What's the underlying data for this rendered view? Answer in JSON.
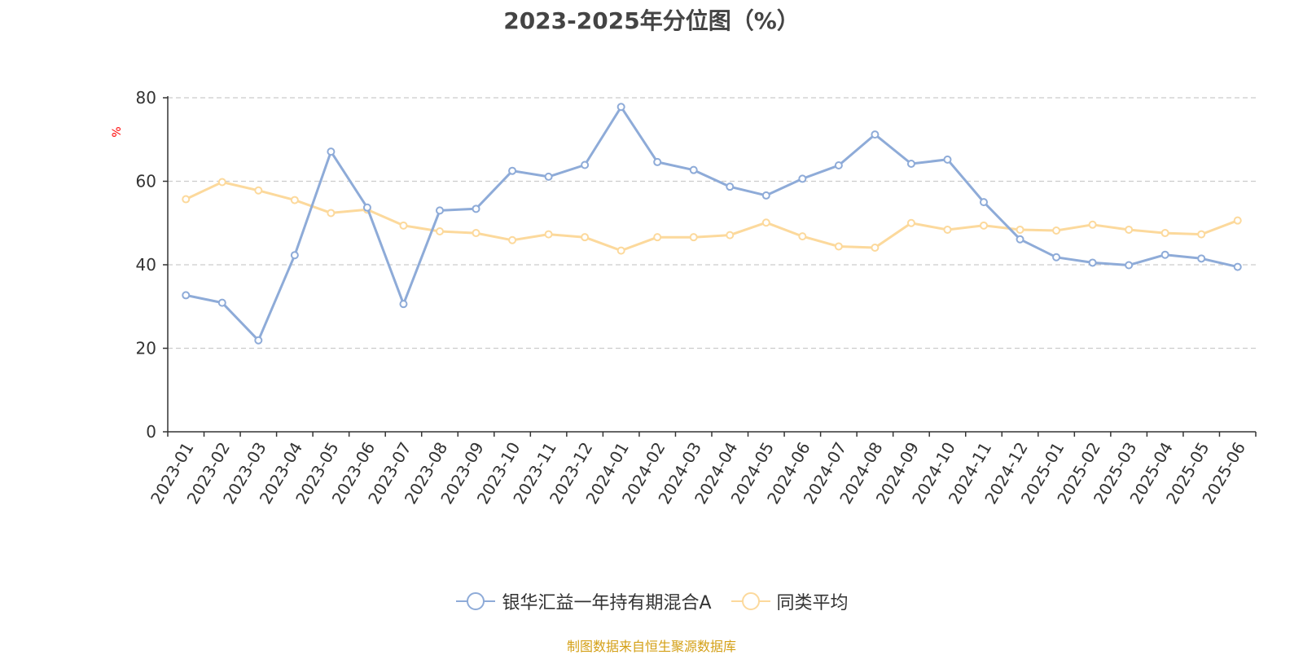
{
  "chart_data": {
    "type": "line",
    "title": "2023-2025年分位图（%）",
    "ylabel": "%",
    "ylim": [
      0,
      80
    ],
    "yticks": [
      0,
      20,
      40,
      60,
      80
    ],
    "grid": true,
    "legend_position": "bottom",
    "categories": [
      "2023-01",
      "2023-02",
      "2023-03",
      "2023-04",
      "2023-05",
      "2023-06",
      "2023-07",
      "2023-08",
      "2023-09",
      "2023-10",
      "2023-11",
      "2023-12",
      "2024-01",
      "2024-02",
      "2024-03",
      "2024-04",
      "2024-05",
      "2024-06",
      "2024-07",
      "2024-08",
      "2024-09",
      "2024-10",
      "2024-11",
      "2024-12",
      "2025-01",
      "2025-02",
      "2025-03",
      "2025-04",
      "2025-05",
      "2025-06"
    ],
    "series": [
      {
        "name": "银华汇益一年持有期混合A",
        "color": "#8eabd8",
        "values": [
          32.7,
          30.9,
          21.9,
          42.3,
          67.1,
          53.7,
          30.6,
          53.0,
          53.4,
          62.5,
          61.1,
          63.9,
          77.8,
          64.6,
          62.7,
          58.7,
          56.6,
          60.6,
          63.8,
          71.2,
          64.2,
          65.2,
          55.0,
          46.1,
          41.8,
          40.5,
          39.9,
          42.4,
          41.5,
          39.5
        ]
      },
      {
        "name": "同类平均",
        "color": "#fcd99c",
        "values": [
          55.7,
          59.8,
          57.8,
          55.5,
          52.4,
          53.2,
          49.4,
          48.0,
          47.6,
          45.9,
          47.3,
          46.6,
          43.4,
          46.6,
          46.6,
          47.1,
          50.1,
          46.8,
          44.4,
          44.1,
          50.0,
          48.4,
          49.4,
          48.4,
          48.2,
          49.6,
          48.4,
          47.6,
          47.3,
          50.6
        ]
      }
    ]
  },
  "source_text": "制图数据来自恒生聚源数据库",
  "colors": {
    "axis": "#333333",
    "grid": "#cccccc",
    "ylabel": "#ff0000",
    "source": "#d4a017",
    "title": "#444444"
  }
}
